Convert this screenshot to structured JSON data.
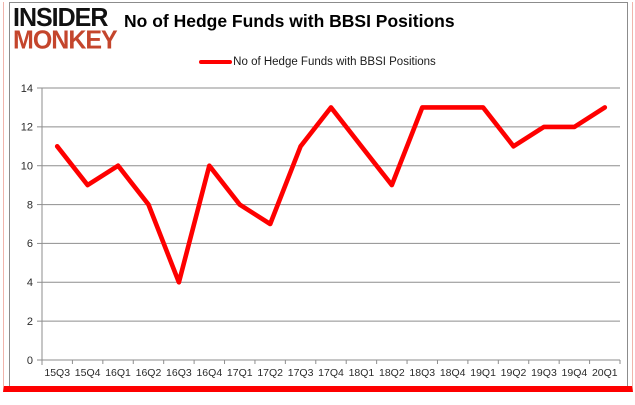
{
  "logo": {
    "line1": "INSIDER",
    "line2": "MONKEY"
  },
  "header": {
    "title": "No of Hedge Funds with BBSI Positions"
  },
  "legend": {
    "label": "No of Hedge Funds with BBSI Positions"
  },
  "chart_data": {
    "type": "line",
    "title": "No of Hedge Funds with BBSI Positions",
    "categories": [
      "15Q3",
      "15Q4",
      "16Q1",
      "16Q2",
      "16Q3",
      "16Q4",
      "17Q1",
      "17Q2",
      "17Q3",
      "17Q4",
      "18Q1",
      "18Q2",
      "18Q3",
      "18Q4",
      "19Q1",
      "19Q2",
      "19Q3",
      "19Q4",
      "20Q1"
    ],
    "values": [
      11,
      9,
      10,
      8,
      4,
      10,
      8,
      7,
      11,
      13,
      11,
      9,
      13,
      13,
      13,
      11,
      12,
      12,
      13
    ],
    "series": [
      {
        "name": "No of Hedge Funds with BBSI Positions",
        "values": [
          11,
          9,
          10,
          8,
          4,
          10,
          8,
          7,
          11,
          13,
          11,
          9,
          13,
          13,
          13,
          11,
          12,
          12,
          13
        ]
      }
    ],
    "xlabel": "",
    "ylabel": "",
    "ylim": [
      0,
      14
    ],
    "yticks": [
      0,
      2,
      4,
      6,
      8,
      10,
      12,
      14
    ],
    "grid": true,
    "legend_position": "top-center",
    "line_color": "#fe0000",
    "gridline_color": "#8e8e8e",
    "axis_color": "#8e8e8e",
    "axis_label_color": "#2b2b2b"
  },
  "colors": {
    "accent_red": "#fe0000",
    "logo_red": "#c4452c",
    "logo_black": "#111111",
    "frame_pink": "#f0b4ac",
    "box_border_gray": "#8c8c8c",
    "background": "#ffffff"
  }
}
